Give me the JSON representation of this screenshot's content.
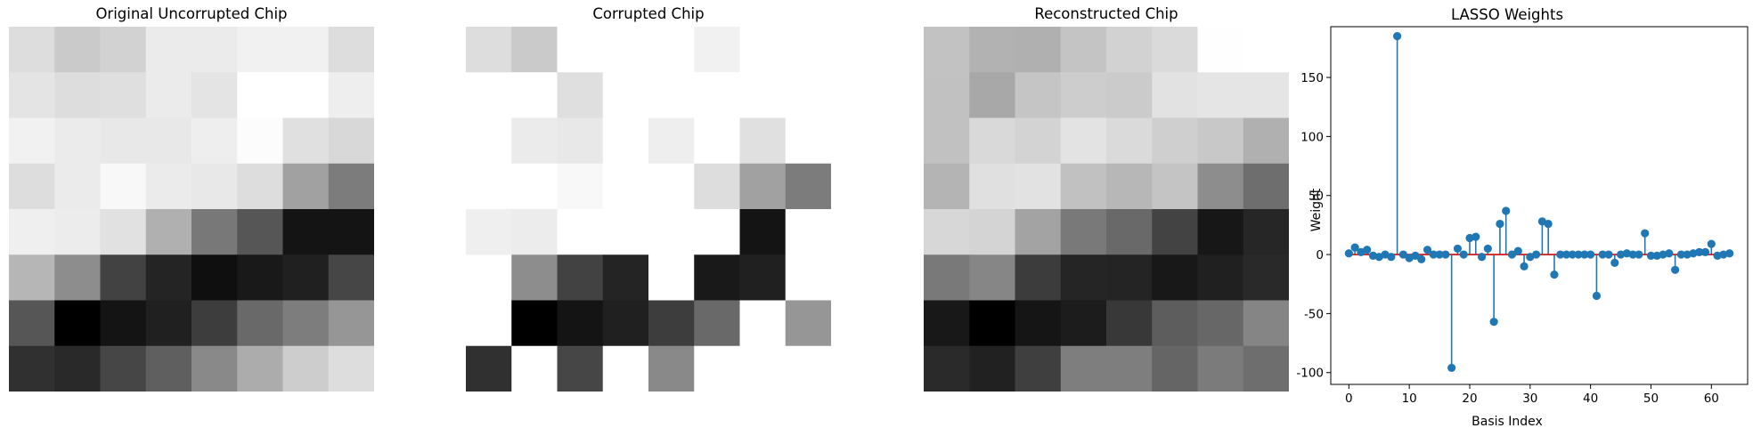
{
  "panels": [
    {
      "title": "Original Uncorrupted Chip",
      "grid": [
        [
          221,
          202,
          210,
          235,
          235,
          241,
          241,
          221
        ],
        [
          228,
          221,
          223,
          235,
          228,
          255,
          255,
          238
        ],
        [
          241,
          235,
          232,
          232,
          238,
          252,
          224,
          216
        ],
        [
          221,
          235,
          248,
          235,
          232,
          221,
          161,
          124
        ],
        [
          239,
          236,
          225,
          176,
          120,
          86,
          20,
          20
        ],
        [
          182,
          141,
          66,
          36,
          15,
          25,
          32,
          70
        ],
        [
          86,
          0,
          20,
          32,
          61,
          105,
          125,
          150
        ],
        [
          48,
          41,
          70,
          95,
          137,
          172,
          205,
          221
        ]
      ]
    },
    {
      "title": "Corrupted Chip",
      "grid": [
        [
          221,
          202,
          null,
          null,
          null,
          241,
          null,
          null
        ],
        [
          null,
          null,
          223,
          null,
          null,
          null,
          null,
          null
        ],
        [
          null,
          235,
          232,
          null,
          238,
          null,
          224,
          null
        ],
        [
          null,
          null,
          248,
          null,
          null,
          221,
          161,
          124
        ],
        [
          239,
          236,
          null,
          null,
          null,
          null,
          20,
          null
        ],
        [
          null,
          141,
          66,
          36,
          null,
          25,
          32,
          null
        ],
        [
          null,
          0,
          20,
          32,
          61,
          105,
          null,
          150
        ],
        [
          48,
          null,
          70,
          null,
          137,
          null,
          null,
          null
        ]
      ]
    },
    {
      "title": "Reconstructed Chip",
      "grid": [
        [
          194,
          178,
          176,
          196,
          210,
          218,
          254,
          null
        ],
        [
          193,
          168,
          197,
          205,
          203,
          226,
          229,
          229
        ],
        [
          193,
          217,
          211,
          227,
          218,
          207,
          200,
          176
        ],
        [
          180,
          224,
          226,
          193,
          183,
          196,
          141,
          110
        ],
        [
          215,
          212,
          163,
          121,
          105,
          67,
          23,
          38
        ],
        [
          121,
          134,
          60,
          37,
          36,
          24,
          32,
          41
        ],
        [
          24,
          0,
          21,
          28,
          56,
          93,
          103,
          133
        ],
        [
          42,
          33,
          63,
          126,
          126,
          101,
          123,
          110
        ]
      ]
    }
  ],
  "chart_data": {
    "type": "stem",
    "title": "LASSO Weights",
    "xlabel": "Basis Index",
    "ylabel": "Weight",
    "xlim": [
      -3,
      66
    ],
    "ylim": [
      -110,
      193
    ],
    "xticks": [
      0,
      10,
      20,
      30,
      40,
      50,
      60
    ],
    "yticks": [
      -100,
      -50,
      0,
      50,
      100,
      150
    ],
    "marker_color": "#1f77b4",
    "baseline_color": "#d62728",
    "x": [
      0,
      1,
      2,
      3,
      4,
      5,
      6,
      7,
      8,
      9,
      10,
      11,
      12,
      13,
      14,
      15,
      16,
      17,
      18,
      19,
      20,
      21,
      22,
      23,
      24,
      25,
      26,
      27,
      28,
      29,
      30,
      31,
      32,
      33,
      34,
      35,
      36,
      37,
      38,
      39,
      40,
      41,
      42,
      43,
      44,
      45,
      46,
      47,
      48,
      49,
      50,
      51,
      52,
      53,
      54,
      55,
      56,
      57,
      58,
      59,
      60,
      61,
      62,
      63
    ],
    "values": [
      1,
      6,
      2,
      4,
      -1,
      -2,
      0,
      -2,
      185,
      0,
      -3,
      -1,
      -4,
      4,
      0,
      0,
      0,
      -96,
      5,
      0,
      14,
      15,
      -2,
      5,
      -57,
      26,
      37,
      0,
      3,
      -10,
      -2,
      0,
      28,
      26,
      -17,
      0,
      0,
      0,
      0,
      0,
      0,
      -35,
      0,
      0,
      -7,
      0,
      1,
      0,
      0,
      18,
      -1,
      -1,
      0,
      1,
      -13,
      0,
      0,
      1,
      2,
      2,
      9,
      -1,
      0,
      1
    ]
  }
}
